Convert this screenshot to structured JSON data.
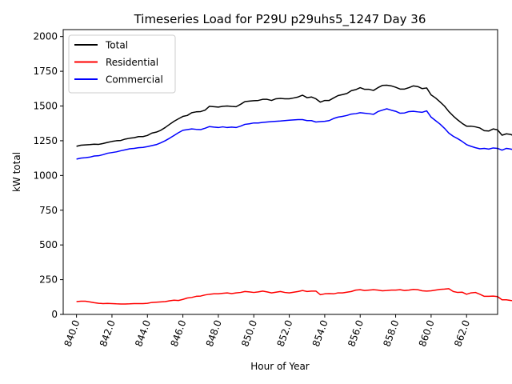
{
  "chart_data": {
    "type": "line",
    "title": "Timeseries Load for P29U p29uhs5_1247  Day 36",
    "xlabel": "Hour of Year",
    "ylabel": "kW total",
    "xlim": [
      839.25,
      863.75
    ],
    "ylim": [
      0,
      2050
    ],
    "xticks": [
      840,
      842,
      844,
      846,
      848,
      850,
      852,
      854,
      856,
      858,
      860,
      862
    ],
    "xtick_labels": [
      "840.0",
      "842.0",
      "844.0",
      "846.0",
      "848.0",
      "850.0",
      "852.0",
      "854.0",
      "856.0",
      "858.0",
      "860.0",
      "862.0"
    ],
    "yticks": [
      0,
      250,
      500,
      750,
      1000,
      1250,
      1500,
      1750,
      2000
    ],
    "ytick_labels": [
      "0",
      "250",
      "500",
      "750",
      "1000",
      "1250",
      "1500",
      "1750",
      "2000"
    ],
    "grid": false,
    "legend_position": "upper-left",
    "x_start": 840.0,
    "x_step": 0.25,
    "series": [
      {
        "name": "Total",
        "color": "#000000",
        "values": [
          1210,
          1218,
          1220,
          1222,
          1225,
          1224,
          1230,
          1238,
          1245,
          1250,
          1252,
          1262,
          1268,
          1272,
          1280,
          1280,
          1288,
          1305,
          1312,
          1325,
          1345,
          1368,
          1390,
          1408,
          1425,
          1432,
          1452,
          1458,
          1460,
          1470,
          1498,
          1495,
          1492,
          1498,
          1500,
          1497,
          1495,
          1512,
          1532,
          1535,
          1538,
          1540,
          1548,
          1548,
          1540,
          1552,
          1555,
          1552,
          1552,
          1558,
          1565,
          1578,
          1560,
          1565,
          1552,
          1528,
          1540,
          1540,
          1558,
          1575,
          1582,
          1590,
          1610,
          1618,
          1632,
          1620,
          1620,
          1612,
          1632,
          1648,
          1650,
          1645,
          1635,
          1622,
          1622,
          1632,
          1645,
          1640,
          1625,
          1630,
          1580,
          1558,
          1530,
          1500,
          1460,
          1428,
          1400,
          1375,
          1355,
          1355,
          1350,
          1342,
          1322,
          1320,
          1335,
          1328,
          1290,
          1300,
          1295,
          1280
        ]
      },
      {
        "name": "Residential",
        "color": "#ff0000",
        "values": [
          92,
          95,
          95,
          90,
          84,
          80,
          78,
          79,
          78,
          76,
          75,
          75,
          76,
          78,
          78,
          78,
          80,
          86,
          88,
          90,
          92,
          98,
          102,
          100,
          108,
          118,
          122,
          130,
          132,
          140,
          145,
          148,
          148,
          152,
          155,
          150,
          155,
          158,
          165,
          162,
          158,
          162,
          168,
          162,
          155,
          160,
          165,
          158,
          155,
          160,
          165,
          172,
          165,
          168,
          168,
          142,
          148,
          150,
          148,
          155,
          155,
          160,
          165,
          175,
          178,
          172,
          175,
          178,
          175,
          170,
          172,
          175,
          175,
          178,
          172,
          175,
          180,
          178,
          170,
          168,
          170,
          175,
          180,
          182,
          185,
          165,
          158,
          160,
          145,
          155,
          158,
          145,
          130,
          130,
          132,
          128,
          105,
          105,
          100,
          98
        ]
      },
      {
        "name": "Commercial",
        "color": "#0000ff",
        "values": [
          1118,
          1125,
          1128,
          1132,
          1140,
          1142,
          1150,
          1160,
          1165,
          1170,
          1178,
          1185,
          1192,
          1195,
          1200,
          1202,
          1208,
          1215,
          1222,
          1235,
          1250,
          1268,
          1288,
          1308,
          1325,
          1330,
          1335,
          1332,
          1330,
          1340,
          1352,
          1348,
          1345,
          1350,
          1345,
          1348,
          1345,
          1355,
          1368,
          1372,
          1378,
          1378,
          1382,
          1385,
          1388,
          1390,
          1392,
          1395,
          1398,
          1400,
          1402,
          1402,
          1395,
          1395,
          1385,
          1388,
          1390,
          1395,
          1410,
          1420,
          1425,
          1432,
          1442,
          1445,
          1452,
          1448,
          1445,
          1440,
          1460,
          1470,
          1480,
          1470,
          1462,
          1448,
          1450,
          1460,
          1462,
          1458,
          1455,
          1465,
          1420,
          1395,
          1370,
          1340,
          1305,
          1282,
          1265,
          1245,
          1222,
          1210,
          1200,
          1192,
          1195,
          1190,
          1198,
          1195,
          1182,
          1195,
          1190,
          1182
        ]
      }
    ]
  }
}
